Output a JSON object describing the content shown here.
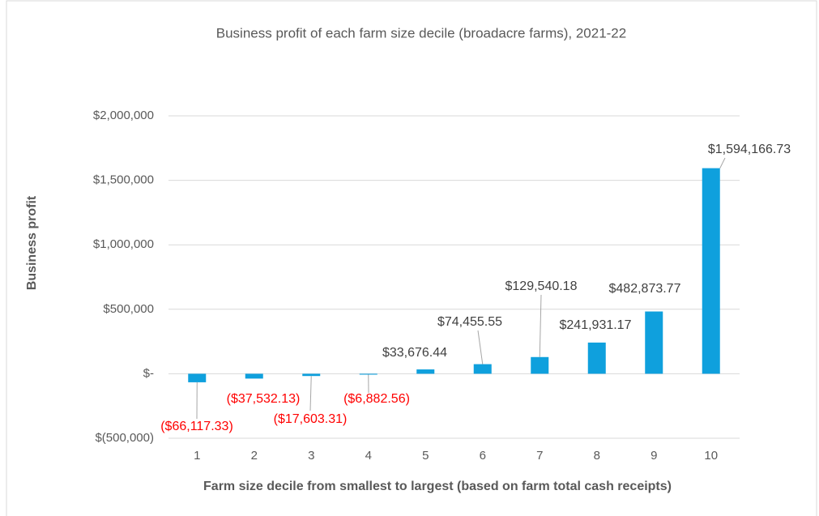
{
  "chart_data": {
    "type": "bar",
    "title": "Business profit of each farm size decile (broadacre farms), 2021-22",
    "ylabel": "Business profit",
    "xlabel": "Farm size decile from smallest to largest (based on farm total cash receipts)",
    "categories": [
      "1",
      "2",
      "3",
      "4",
      "5",
      "6",
      "7",
      "8",
      "9",
      "10"
    ],
    "values": [
      -66117.33,
      -37532.13,
      -17603.31,
      -6882.56,
      33676.44,
      74455.55,
      129540.18,
      241931.17,
      482873.77,
      1594166.73
    ],
    "value_labels": [
      "($66,117.33)",
      "($37,532.13)",
      "($17,603.31)",
      "($6,882.56)",
      "$33,676.44",
      "$74,455.55",
      "$129,540.18",
      "$241,931.17",
      "$482,873.77",
      "$1,594,166.73"
    ],
    "color": "#0fa0dd",
    "label_color": "#404040",
    "negative_label_color": "#ff0000",
    "ylim": [
      -500000,
      2000000
    ],
    "yticks": [
      {
        "value": -500000,
        "label": "$(500,000)"
      },
      {
        "value": 0,
        "label": "$-"
      },
      {
        "value": 500000,
        "label": "$500,000"
      },
      {
        "value": 1000000,
        "label": "$1,000,000"
      },
      {
        "value": 1500000,
        "label": "$1,500,000"
      },
      {
        "value": 2000000,
        "label": "$2,000,000"
      }
    ],
    "grid": true
  }
}
